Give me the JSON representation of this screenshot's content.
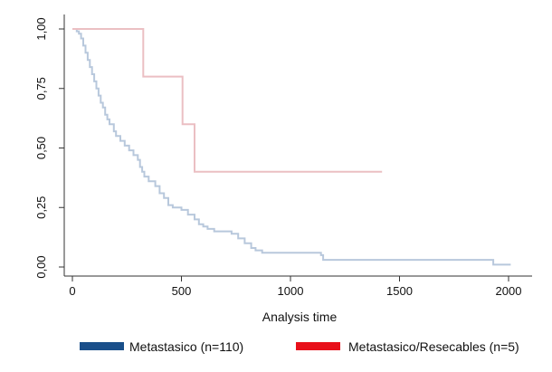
{
  "chart_data": {
    "type": "line",
    "title": "",
    "xlabel": "Analysis time",
    "ylabel": "",
    "xlim": [
      0,
      2000
    ],
    "ylim": [
      0,
      1
    ],
    "grid": false,
    "legend_position": "bottom",
    "x_ticks": [
      {
        "value": 0,
        "label": "0"
      },
      {
        "value": 500,
        "label": "500"
      },
      {
        "value": 1000,
        "label": "1000"
      },
      {
        "value": 1500,
        "label": "1500"
      },
      {
        "value": 2000,
        "label": "2000"
      }
    ],
    "y_ticks": [
      {
        "value": 0,
        "label": "0,00"
      },
      {
        "value": 0.25,
        "label": "0,25"
      },
      {
        "value": 0.5,
        "label": "0,50"
      },
      {
        "value": 0.75,
        "label": "0,75"
      },
      {
        "value": 1,
        "label": "1,00"
      }
    ],
    "series": [
      {
        "name": "Metastasico (n=110)",
        "line_color": "#b8c8dc",
        "legend_color": "#1a4f8a",
        "points": [
          [
            0,
            1.0
          ],
          [
            15,
            1.0
          ],
          [
            20,
            0.99
          ],
          [
            30,
            0.98
          ],
          [
            40,
            0.96
          ],
          [
            50,
            0.93
          ],
          [
            60,
            0.9
          ],
          [
            70,
            0.87
          ],
          [
            80,
            0.84
          ],
          [
            90,
            0.81
          ],
          [
            100,
            0.78
          ],
          [
            110,
            0.75
          ],
          [
            120,
            0.72
          ],
          [
            130,
            0.69
          ],
          [
            140,
            0.67
          ],
          [
            150,
            0.64
          ],
          [
            160,
            0.62
          ],
          [
            170,
            0.6
          ],
          [
            190,
            0.57
          ],
          [
            200,
            0.55
          ],
          [
            220,
            0.53
          ],
          [
            240,
            0.51
          ],
          [
            260,
            0.49
          ],
          [
            280,
            0.47
          ],
          [
            300,
            0.45
          ],
          [
            310,
            0.42
          ],
          [
            320,
            0.4
          ],
          [
            330,
            0.38
          ],
          [
            350,
            0.36
          ],
          [
            380,
            0.34
          ],
          [
            400,
            0.31
          ],
          [
            420,
            0.29
          ],
          [
            440,
            0.26
          ],
          [
            460,
            0.25
          ],
          [
            500,
            0.24
          ],
          [
            530,
            0.22
          ],
          [
            560,
            0.2
          ],
          [
            580,
            0.18
          ],
          [
            600,
            0.17
          ],
          [
            620,
            0.16
          ],
          [
            650,
            0.15
          ],
          [
            730,
            0.14
          ],
          [
            760,
            0.12
          ],
          [
            790,
            0.1
          ],
          [
            820,
            0.08
          ],
          [
            840,
            0.07
          ],
          [
            870,
            0.06
          ],
          [
            1140,
            0.05
          ],
          [
            1150,
            0.03
          ],
          [
            1920,
            0.03
          ],
          [
            1930,
            0.01
          ],
          [
            2010,
            0.01
          ]
        ]
      },
      {
        "name": "Metastasico/Resecables (n=5)",
        "line_color": "#ebbfc3",
        "legend_color": "#e8101a",
        "points": [
          [
            0,
            1.0
          ],
          [
            325,
            1.0
          ],
          [
            325,
            0.8
          ],
          [
            505,
            0.8
          ],
          [
            505,
            0.6
          ],
          [
            560,
            0.6
          ],
          [
            560,
            0.4
          ],
          [
            1420,
            0.4
          ]
        ]
      }
    ]
  }
}
